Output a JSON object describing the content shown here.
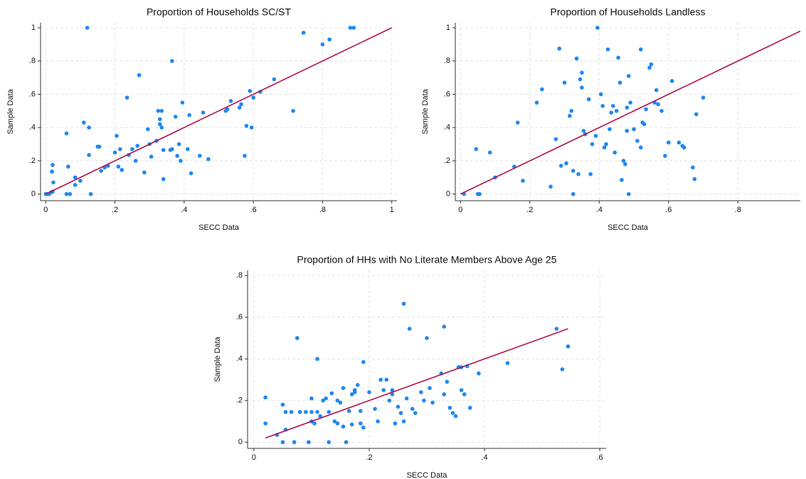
{
  "chart_data": [
    {
      "type": "scatter",
      "title": "Proportion of Households SC/ST",
      "xlabel": "SECC Data",
      "ylabel": "Sample Data",
      "color": "#1e88f0",
      "xlim": [
        -0.015,
        1.015
      ],
      "ylim": [
        -0.04,
        1.03
      ],
      "xticks": [
        0,
        {
          "value": 0.2,
          "label": ".2"
        },
        {
          "value": 0.4,
          "label": ".4"
        },
        {
          "value": 0.6,
          "label": ".6"
        },
        {
          "value": 0.8,
          "label": ".8"
        },
        1
      ],
      "yticks": [
        0,
        {
          "value": 0.2,
          "label": ".2"
        },
        {
          "value": 0.4,
          "label": ".4"
        },
        {
          "value": 0.6,
          "label": ".6"
        },
        {
          "value": 0.8,
          "label": ".8"
        },
        1
      ],
      "grid": true,
      "x": [
        0,
        0.005,
        0.01,
        0.015,
        0.02,
        0.018,
        0.02,
        0.022,
        0.06,
        0.065,
        0.06,
        0.07,
        0.085,
        0.085,
        0.1,
        0.11,
        0.12,
        0.125,
        0.125,
        0.13,
        0.15,
        0.155,
        0.16,
        0.17,
        0.18,
        0.2,
        0.205,
        0.21,
        0.215,
        0.22,
        0.235,
        0.24,
        0.25,
        0.26,
        0.265,
        0.27,
        0.285,
        0.295,
        0.3,
        0.305,
        0.32,
        0.325,
        0.33,
        0.335,
        0.33,
        0.34,
        0.335,
        0.34,
        0.36,
        0.365,
        0.365,
        0.375,
        0.38,
        0.385,
        0.39,
        0.395,
        0.41,
        0.415,
        0.42,
        0.445,
        0.455,
        0.47,
        0.52,
        0.525,
        0.535,
        0.56,
        0.565,
        0.575,
        0.58,
        0.59,
        0.595,
        0.6,
        0.62,
        0.66,
        0.715,
        0.745,
        0.8,
        0.82,
        0.88,
        0.89
      ],
      "values": [
        0,
        0,
        0,
        0.01,
        0.015,
        0.135,
        0.175,
        0.07,
        0.365,
        0.165,
        0,
        0,
        0.1,
        0.055,
        0.08,
        0.43,
        1.0,
        0.4,
        0.235,
        0,
        0.285,
        0.285,
        0.14,
        0.16,
        0.17,
        0.25,
        0.35,
        0.165,
        0.27,
        0.145,
        0.58,
        0.235,
        0.27,
        0.2,
        0.29,
        0.715,
        0.13,
        0.39,
        0.3,
        0.225,
        0.32,
        0.5,
        0.45,
        0.5,
        0.42,
        0.09,
        0.4,
        0.265,
        0.265,
        0.8,
        0.27,
        0.465,
        0.23,
        0.3,
        0.2,
        0.55,
        0.27,
        0.475,
        0.125,
        0.23,
        0.49,
        0.21,
        0.5,
        0.51,
        0.56,
        0.52,
        0.54,
        0.23,
        0.41,
        0.62,
        0.4,
        0.58,
        0.615,
        0.69,
        0.5,
        0.97,
        0.9,
        0.93,
        1.0,
        1.0
      ],
      "fit_line": {
        "x": [
          0,
          1
        ],
        "values": [
          0,
          1
        ],
        "color": "#b0124d"
      }
    },
    {
      "type": "scatter",
      "title": "Proportion of Households Landless",
      "xlabel": "SECC Data",
      "ylabel": "Sample Data",
      "color": "#1e88f0",
      "xlim": [
        -0.015,
        0.98
      ],
      "ylim": [
        -0.04,
        1.03
      ],
      "xticks": [
        0,
        {
          "value": 0.2,
          "label": ".2"
        },
        {
          "value": 0.4,
          "label": ".4"
        },
        {
          "value": 0.6,
          "label": ".6"
        },
        {
          "value": 0.8,
          "label": ".8"
        }
      ],
      "yticks": [
        0,
        {
          "value": 0.2,
          "label": ".2"
        },
        {
          "value": 0.4,
          "label": ".4"
        },
        {
          "value": 0.6,
          "label": ".6"
        },
        {
          "value": 0.8,
          "label": ".8"
        },
        1
      ],
      "grid": true,
      "x": [
        0.01,
        0.05,
        0.055,
        0.045,
        0.085,
        0.1,
        0.155,
        0.165,
        0.18,
        0.22,
        0.235,
        0.26,
        0.275,
        0.285,
        0.29,
        0.3,
        0.305,
        0.315,
        0.32,
        0.325,
        0.325,
        0.335,
        0.34,
        0.345,
        0.35,
        0.35,
        0.355,
        0.36,
        0.37,
        0.375,
        0.38,
        0.39,
        0.395,
        0.405,
        0.41,
        0.415,
        0.42,
        0.425,
        0.43,
        0.435,
        0.44,
        0.445,
        0.45,
        0.455,
        0.46,
        0.465,
        0.47,
        0.475,
        0.48,
        0.48,
        0.485,
        0.485,
        0.49,
        0.5,
        0.51,
        0.52,
        0.52,
        0.525,
        0.53,
        0.535,
        0.545,
        0.55,
        0.56,
        0.565,
        0.57,
        0.58,
        0.59,
        0.6,
        0.61,
        0.63,
        0.64,
        0.645,
        0.67,
        0.675,
        0.68,
        0.7
      ],
      "values": [
        0,
        0,
        0,
        0.27,
        0.25,
        0.1,
        0.165,
        0.43,
        0.08,
        0.55,
        0.63,
        0.045,
        0.33,
        0.875,
        0.17,
        0.67,
        0.185,
        0.47,
        0.5,
        0.14,
        0,
        0.815,
        0.12,
        0.69,
        0.73,
        0.64,
        0.38,
        0.36,
        0.57,
        0.12,
        0.3,
        0.35,
        1.0,
        0.6,
        0.53,
        0.28,
        0.3,
        0.87,
        0.39,
        0.49,
        0.53,
        0.25,
        0.5,
        0.82,
        0.67,
        0.085,
        0.2,
        0.18,
        0.52,
        0.38,
        0.71,
        0,
        0.55,
        0.39,
        0.32,
        0.87,
        0.28,
        0.43,
        0.42,
        0.51,
        0.76,
        0.78,
        0.55,
        0.625,
        0.54,
        0.5,
        0.23,
        0.31,
        0.68,
        0.31,
        0.29,
        0.28,
        0.16,
        0.09,
        0.48,
        0.58
      ],
      "fit_line": {
        "x": [
          0,
          0.98
        ],
        "values": [
          0,
          0.98
        ],
        "color": "#b0124d"
      }
    },
    {
      "type": "scatter",
      "title": "Proportion of HHs with No Literate Members Above Age 25",
      "xlabel": "SECC Data",
      "ylabel": "Sample Data",
      "color": "#1e88f0",
      "xlim": [
        -0.011,
        0.611
      ],
      "ylim": [
        -0.03,
        0.825
      ],
      "xticks": [
        0,
        {
          "value": 0.2,
          "label": ".2"
        },
        {
          "value": 0.4,
          "label": ".4"
        },
        {
          "value": 0.6,
          "label": ".6"
        }
      ],
      "yticks": [
        0,
        {
          "value": 0.2,
          "label": ".2"
        },
        {
          "value": 0.4,
          "label": ".4"
        },
        {
          "value": 0.6,
          "label": ".6"
        },
        {
          "value": 0.8,
          "label": ".8"
        }
      ],
      "grid": true,
      "x": [
        0.02,
        0.02,
        0.04,
        0.05,
        0.05,
        0.055,
        0.055,
        0.065,
        0.07,
        0.075,
        0.08,
        0.09,
        0.095,
        0.1,
        0.1,
        0.1,
        0.105,
        0.11,
        0.11,
        0.115,
        0.12,
        0.125,
        0.13,
        0.13,
        0.135,
        0.14,
        0.145,
        0.145,
        0.15,
        0.155,
        0.155,
        0.16,
        0.165,
        0.17,
        0.17,
        0.175,
        0.175,
        0.18,
        0.185,
        0.185,
        0.19,
        0.19,
        0.2,
        0.21,
        0.215,
        0.22,
        0.225,
        0.23,
        0.235,
        0.24,
        0.24,
        0.245,
        0.25,
        0.255,
        0.26,
        0.26,
        0.265,
        0.27,
        0.275,
        0.28,
        0.29,
        0.295,
        0.3,
        0.305,
        0.31,
        0.325,
        0.33,
        0.33,
        0.335,
        0.34,
        0.345,
        0.35,
        0.355,
        0.36,
        0.36,
        0.365,
        0.37,
        0.375,
        0.39,
        0.44,
        0.525,
        0.535,
        0.545
      ],
      "values": [
        0.09,
        0.215,
        0.035,
        0.18,
        0,
        0.06,
        0.145,
        0.145,
        0,
        0.5,
        0.145,
        0.145,
        0,
        0.145,
        0.21,
        0.1,
        0.09,
        0.4,
        0.145,
        0.125,
        0.2,
        0.21,
        0.145,
        0,
        0.235,
        0.1,
        0.09,
        0.2,
        0.19,
        0.075,
        0.26,
        0,
        0.15,
        0.23,
        0.085,
        0.25,
        0.24,
        0.275,
        0.09,
        0.15,
        0.07,
        0.385,
        0.24,
        0.16,
        0.1,
        0.3,
        0.25,
        0.3,
        0.2,
        0.23,
        0.25,
        0.09,
        0.17,
        0.14,
        0.665,
        0.1,
        0.21,
        0.545,
        0.16,
        0.14,
        0.24,
        0.2,
        0.5,
        0.26,
        0.19,
        0.33,
        0.555,
        0.23,
        0.29,
        0.165,
        0.14,
        0.125,
        0.36,
        0.36,
        0.25,
        0.23,
        0.365,
        0.165,
        0.33,
        0.38,
        0.545,
        0.35,
        0.46
      ],
      "fit_line": {
        "x": [
          0.02,
          0.545
        ],
        "values": [
          0.02,
          0.545
        ],
        "color": "#b0124d"
      }
    }
  ]
}
